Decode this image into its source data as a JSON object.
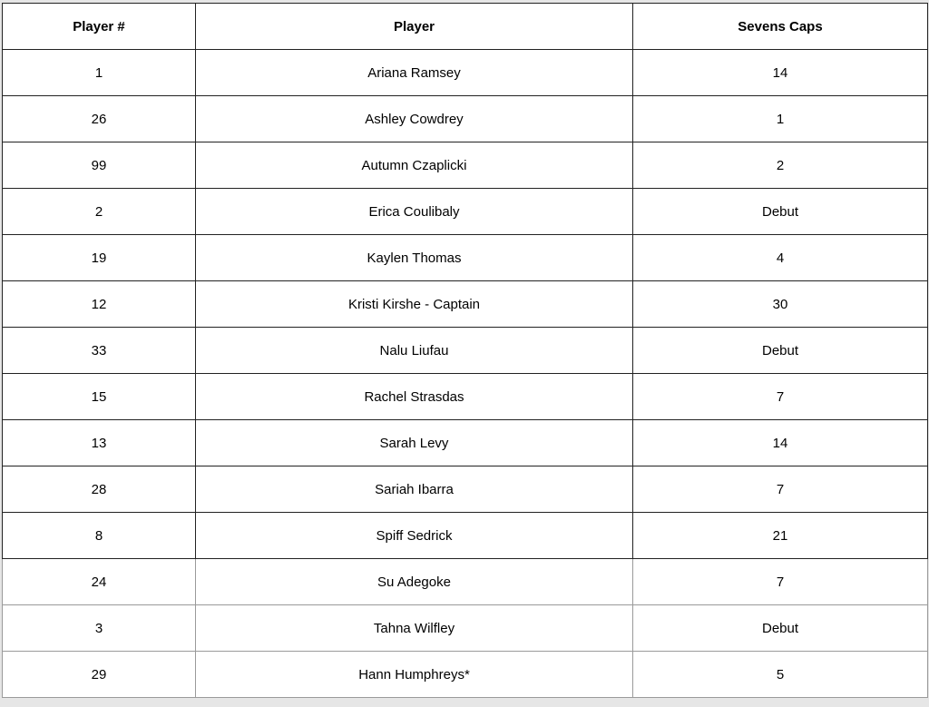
{
  "headers": [
    "Player #",
    "Player",
    "Sevens Caps"
  ],
  "rows": [
    [
      "1",
      "Ariana Ramsey",
      "14"
    ],
    [
      "26",
      "Ashley Cowdrey",
      "1"
    ],
    [
      "99",
      "Autumn Czaplicki",
      "2"
    ],
    [
      "2",
      "Erica Coulibaly",
      "Debut"
    ],
    [
      "19",
      "Kaylen Thomas",
      "4"
    ],
    [
      "12",
      "Kristi Kirshe - Captain",
      "30"
    ],
    [
      "33",
      "Nalu Liufau",
      "Debut"
    ],
    [
      "15",
      "Rachel Strasdas",
      "7"
    ],
    [
      "13",
      "Sarah Levy",
      "14"
    ],
    [
      "28",
      "Sariah Ibarra",
      "7"
    ],
    [
      "8",
      "Spiff Sedrick",
      "21"
    ],
    [
      "24",
      "Su Adegoke",
      "7"
    ],
    [
      "3",
      "Tahna Wilfley",
      "Debut"
    ],
    [
      "29",
      "Hann Humphreys*",
      "5"
    ]
  ]
}
